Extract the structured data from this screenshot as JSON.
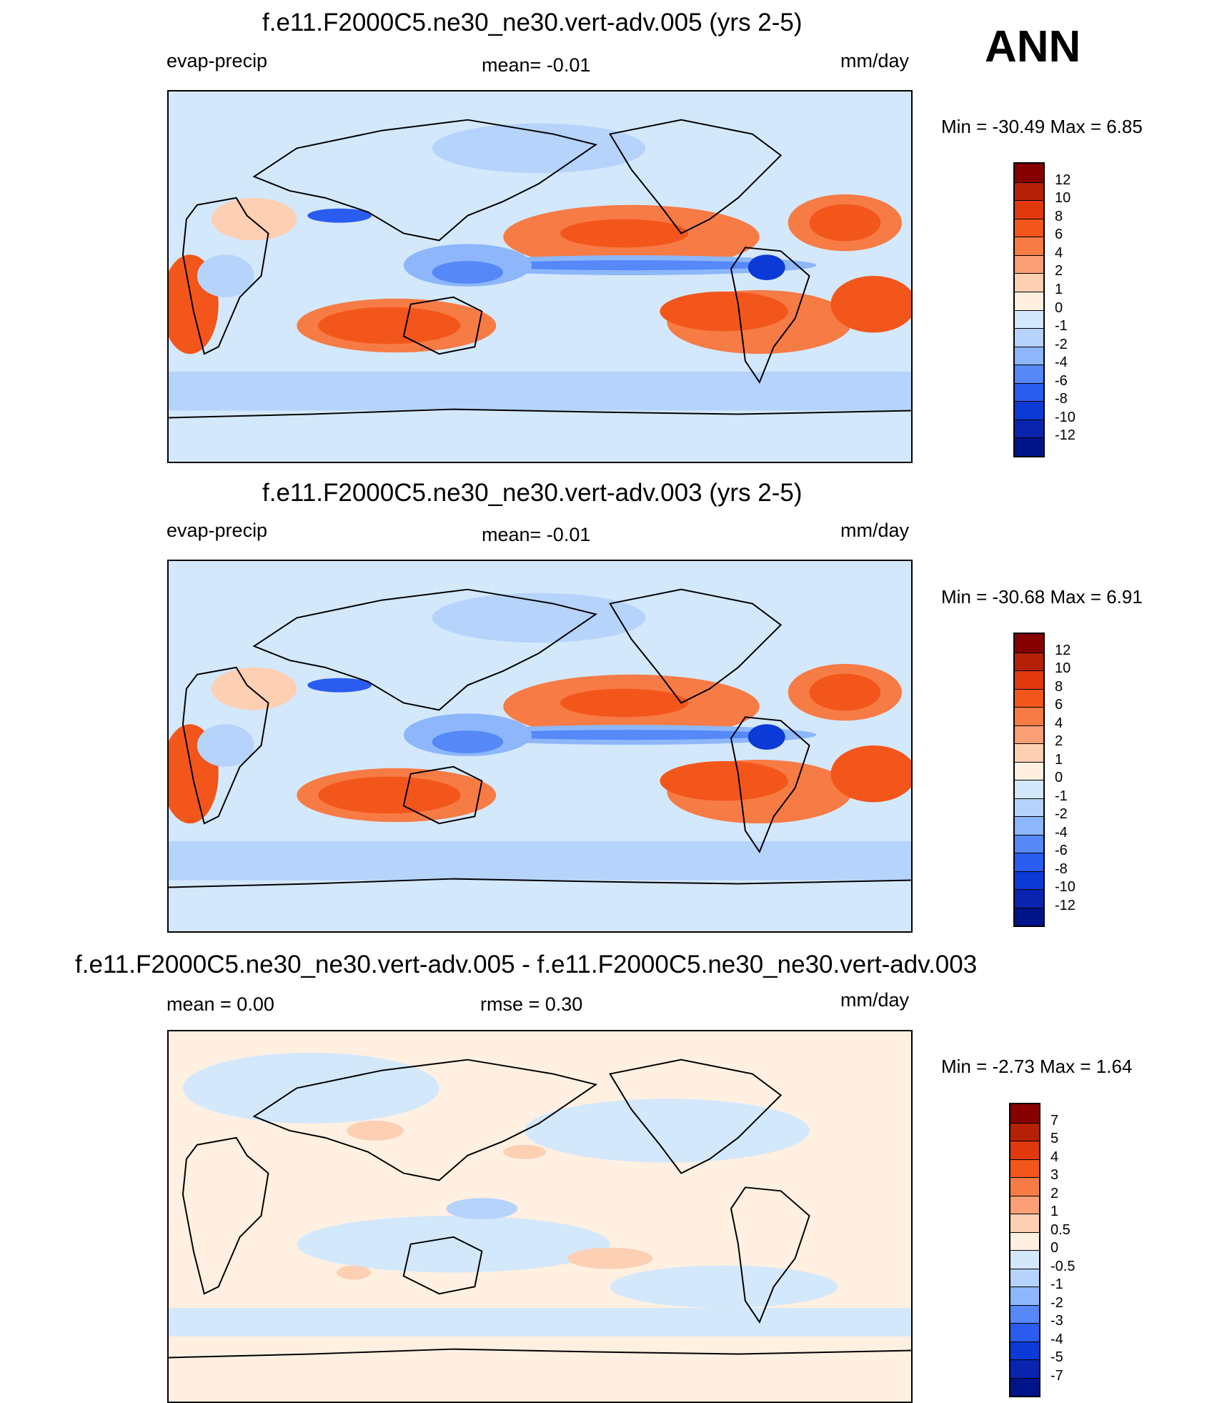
{
  "season": "ANN",
  "panels": [
    {
      "title": "f.e11.F2000C5.ne30_ne30.vert-adv.005 (yrs 2-5)",
      "left_label": "evap-precip",
      "center_label": "mean=  -0.01",
      "right_label": "mm/day",
      "minmax": "Min = -30.49 Max =   6.85",
      "colorbar": {
        "labels": [
          "12",
          "10",
          "8",
          "6",
          "4",
          "2",
          "1",
          "0",
          "-1",
          "-2",
          "-4",
          "-6",
          "-8",
          "-10",
          "-12"
        ],
        "colors": [
          "#870000",
          "#b42106",
          "#e0390e",
          "#f3561b",
          "#f77b44",
          "#fb9f76",
          "#fdcfb3",
          "#fff0e1",
          "#d4e8fc",
          "#b6d3fc",
          "#8db6fb",
          "#5688f8",
          "#2b5cf0",
          "#0b3ad6",
          "#0a24b0",
          "#00148a"
        ]
      },
      "map_map": "model"
    },
    {
      "title": "f.e11.F2000C5.ne30_ne30.vert-adv.003 (yrs 2-5)",
      "left_label": "evap-precip",
      "center_label": "mean=  -0.01",
      "right_label": "mm/day",
      "minmax": "Min = -30.68 Max =   6.91",
      "colorbar": {
        "labels": [
          "12",
          "10",
          "8",
          "6",
          "4",
          "2",
          "1",
          "0",
          "-1",
          "-2",
          "-4",
          "-6",
          "-8",
          "-10",
          "-12"
        ],
        "colors": [
          "#870000",
          "#b42106",
          "#e0390e",
          "#f3561b",
          "#f77b44",
          "#fb9f76",
          "#fdcfb3",
          "#fff0e1",
          "#d4e8fc",
          "#b6d3fc",
          "#8db6fb",
          "#5688f8",
          "#2b5cf0",
          "#0b3ad6",
          "#0a24b0",
          "#00148a"
        ]
      },
      "map_map": "model"
    },
    {
      "title": "f.e11.F2000C5.ne30_ne30.vert-adv.005 - f.e11.F2000C5.ne30_ne30.vert-adv.003",
      "left_label": "mean =   0.00",
      "center_label": "rmse =   0.30",
      "right_label": "mm/day",
      "minmax": "Min =  -2.73 Max =   1.64",
      "colorbar": {
        "labels": [
          "7",
          "5",
          "4",
          "3",
          "2",
          "1",
          "0.5",
          "0",
          "-0.5",
          "-1",
          "-2",
          "-3",
          "-4",
          "-5",
          "-7"
        ],
        "colors": [
          "#870000",
          "#b42106",
          "#e0390e",
          "#f3561b",
          "#f77b44",
          "#fb9f76",
          "#fdcfb3",
          "#fff0e1",
          "#d4e8fc",
          "#b6d3fc",
          "#8db6fb",
          "#5688f8",
          "#2b5cf0",
          "#0b3ad6",
          "#0a24b0",
          "#00148a"
        ]
      },
      "map_map": "diff"
    }
  ],
  "chart_data": [
    {
      "type": "heatmap",
      "title": "f.e11.F2000C5.ne30_ne30.vert-adv.005 (yrs 2-5)",
      "variable": "evap-precip",
      "units": "mm/day",
      "mean": -0.01,
      "min": -30.49,
      "max": 6.85,
      "contour_levels": [
        -12,
        -10,
        -8,
        -6,
        -4,
        -2,
        -1,
        0,
        1,
        2,
        4,
        6,
        8,
        10,
        12
      ],
      "xlabel": "",
      "ylabel": ""
    },
    {
      "type": "heatmap",
      "title": "f.e11.F2000C5.ne30_ne30.vert-adv.003 (yrs 2-5)",
      "variable": "evap-precip",
      "units": "mm/day",
      "mean": -0.01,
      "min": -30.68,
      "max": 6.91,
      "contour_levels": [
        -12,
        -10,
        -8,
        -6,
        -4,
        -2,
        -1,
        0,
        1,
        2,
        4,
        6,
        8,
        10,
        12
      ],
      "xlabel": "",
      "ylabel": ""
    },
    {
      "type": "heatmap",
      "title": "f.e11.F2000C5.ne30_ne30.vert-adv.005 - f.e11.F2000C5.ne30_ne30.vert-adv.003",
      "units": "mm/day",
      "mean": 0.0,
      "rmse": 0.3,
      "min": -2.73,
      "max": 1.64,
      "contour_levels": [
        -7,
        -5,
        -4,
        -3,
        -2,
        -1,
        -0.5,
        0,
        0.5,
        1,
        2,
        3,
        4,
        5,
        7
      ],
      "xlabel": "",
      "ylabel": ""
    }
  ]
}
